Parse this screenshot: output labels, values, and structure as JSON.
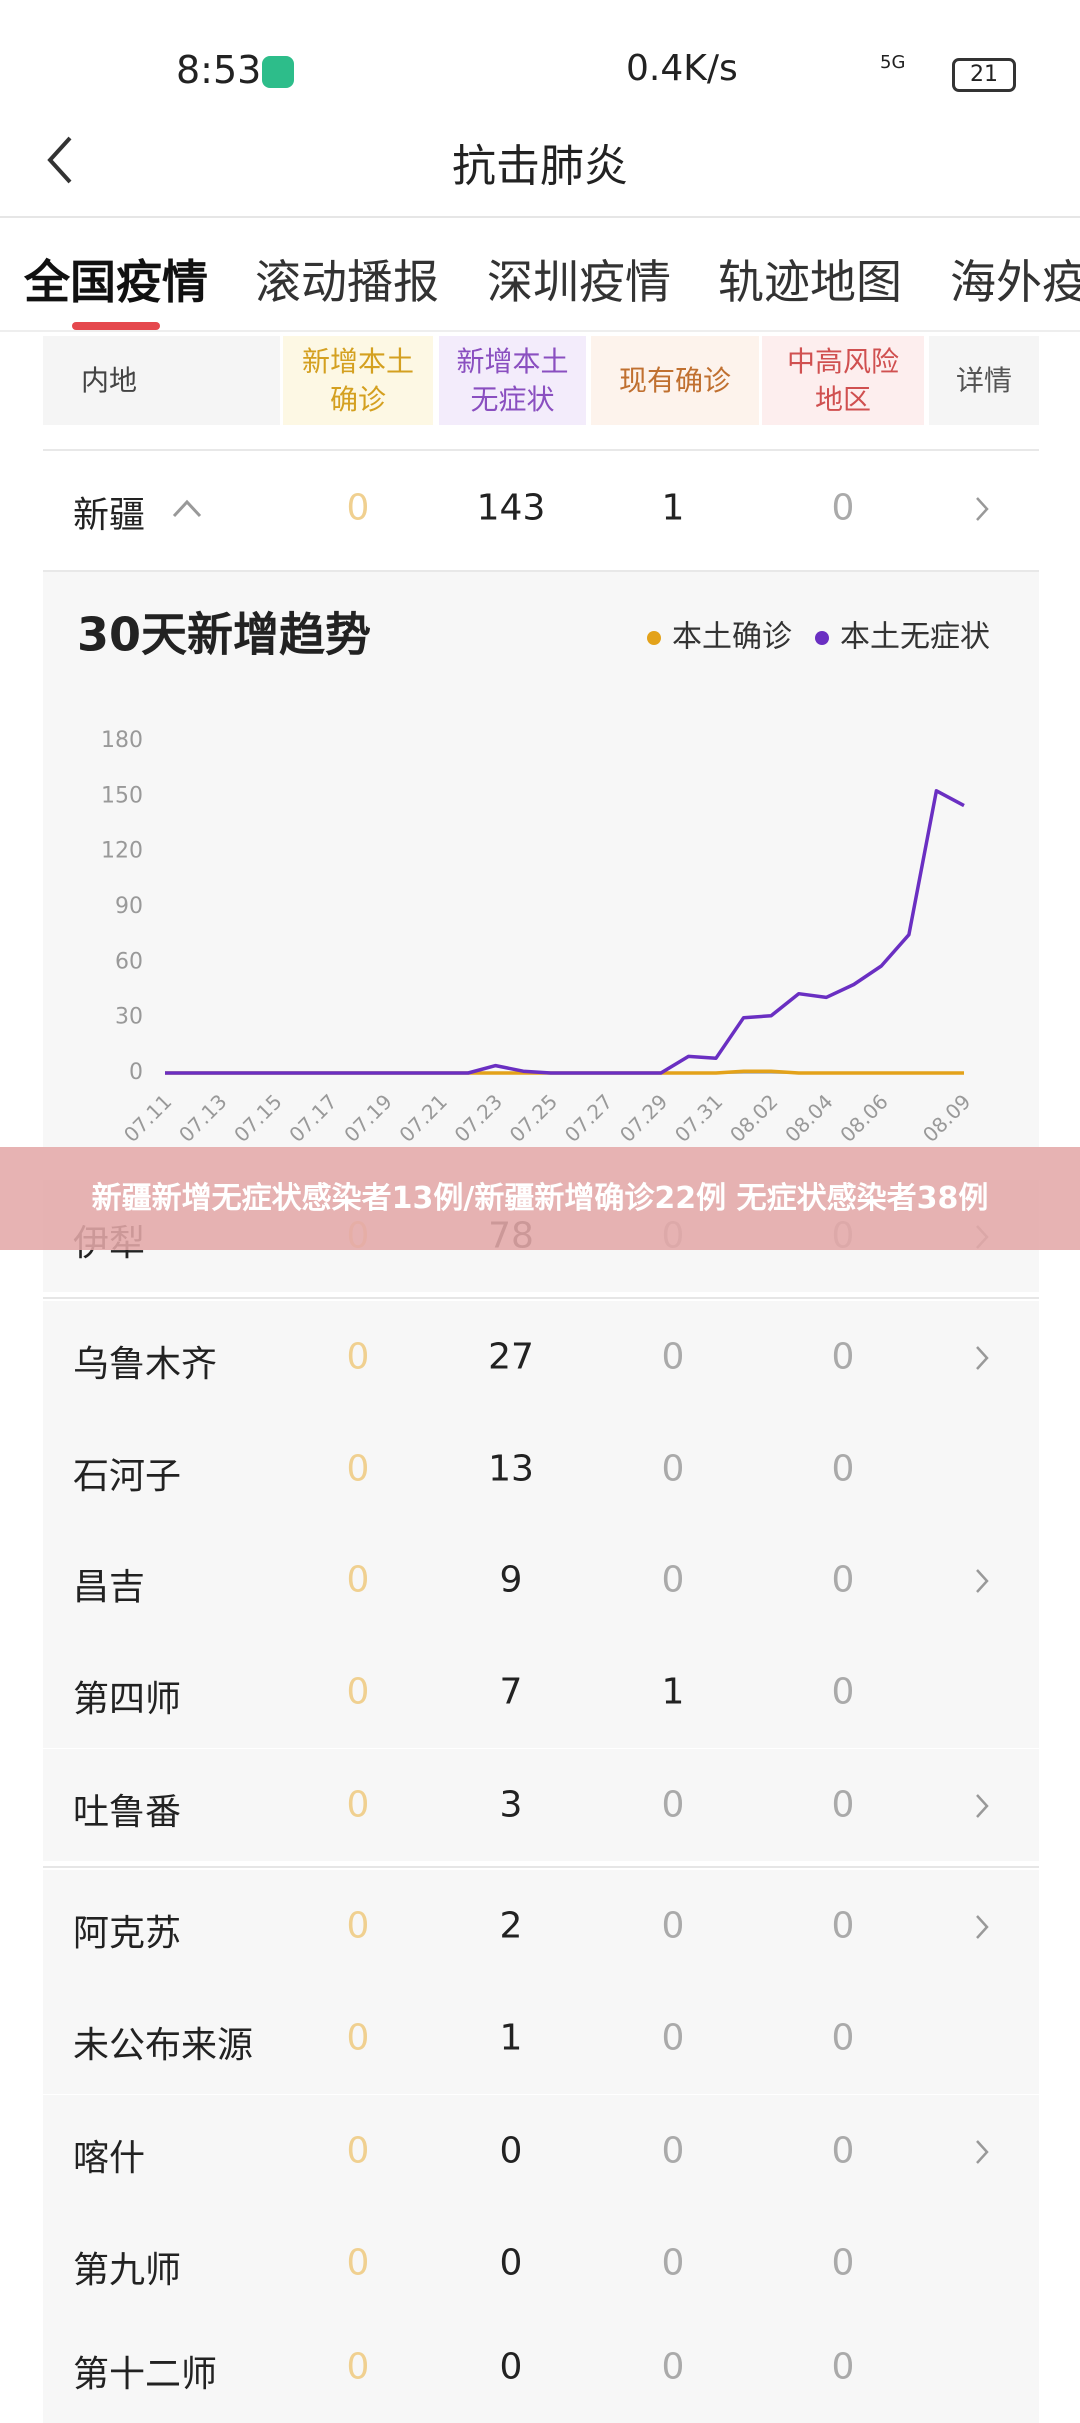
{
  "status_bar": {
    "time": "8:53",
    "network_speed": "0.4K/s",
    "signal": "5G",
    "battery": "21"
  },
  "header": {
    "title": "抗击肺炎"
  },
  "tabs": [
    "全国疫情",
    "滚动播报",
    "深圳疫情",
    "轨迹地图",
    "海外疫"
  ],
  "table": {
    "headers": [
      [
        "内地"
      ],
      [
        "新增本土",
        "确诊"
      ],
      [
        "新增本土",
        "无症状"
      ],
      [
        "现有确诊"
      ],
      [
        "中高风险",
        "地区"
      ],
      [
        "详情"
      ]
    ],
    "region": {
      "name": "新疆",
      "values": [
        0,
        143,
        1,
        0
      ],
      "has_detail": true
    },
    "cities": [
      {
        "name": "伊犁",
        "values": [
          0,
          78,
          0,
          0
        ],
        "has_detail": true
      },
      {
        "name": "乌鲁木齐",
        "values": [
          0,
          27,
          0,
          0
        ],
        "has_detail": true
      },
      {
        "name": "石河子",
        "values": [
          0,
          13,
          0,
          0
        ],
        "has_detail": false
      },
      {
        "name": "昌吉",
        "values": [
          0,
          9,
          0,
          0
        ],
        "has_detail": true
      },
      {
        "name": "第四师",
        "values": [
          0,
          7,
          1,
          0
        ],
        "has_detail": false
      },
      {
        "name": "吐鲁番",
        "values": [
          0,
          3,
          0,
          0
        ],
        "has_detail": true
      },
      {
        "name": "阿克苏",
        "values": [
          0,
          2,
          0,
          0
        ],
        "has_detail": true
      },
      {
        "name": "未公布来源",
        "values": [
          0,
          1,
          0,
          0
        ],
        "has_detail": false
      },
      {
        "name": "喀什",
        "values": [
          0,
          0,
          0,
          0
        ],
        "has_detail": true
      },
      {
        "name": "第九师",
        "values": [
          0,
          0,
          0,
          0
        ],
        "has_detail": false
      },
      {
        "name": "第十二师",
        "values": [
          0,
          0,
          0,
          0
        ],
        "has_detail": false
      }
    ]
  },
  "banner": {
    "text": "新疆新增无症状感染者13例/新疆新增确诊22例 无症状感染者38例"
  },
  "chart_data": {
    "type": "line",
    "title": "30天新增趋势",
    "categories": [
      "07.11",
      null,
      "07.13",
      null,
      "07.15",
      null,
      "07.17",
      null,
      "07.19",
      null,
      "07.21",
      null,
      "07.23",
      null,
      "07.25",
      null,
      "07.27",
      null,
      "07.29",
      null,
      "07.31",
      null,
      "08.02",
      null,
      "08.04",
      null,
      "08.06",
      null,
      null,
      "08.09"
    ],
    "series": [
      {
        "name": "本土确诊",
        "color": "#e3a21a",
        "values": [
          0,
          0,
          0,
          0,
          0,
          0,
          0,
          0,
          0,
          0,
          0,
          0,
          0,
          0,
          0,
          0,
          0,
          0,
          0,
          0,
          0,
          1,
          1,
          0,
          0,
          0,
          0,
          0,
          0,
          0
        ]
      },
      {
        "name": "本土无症状",
        "color": "#6a2fc2",
        "values": [
          0,
          0,
          0,
          0,
          0,
          0,
          0,
          0,
          0,
          0,
          0,
          0,
          4,
          1,
          0,
          0,
          0,
          0,
          0,
          9,
          8,
          30,
          31,
          43,
          41,
          48,
          58,
          75,
          153,
          145
        ]
      }
    ],
    "ylim": [
      0,
      180
    ],
    "yticks": [
      0,
      30,
      60,
      90,
      120,
      150,
      180
    ],
    "grid": false,
    "legend": "top-right"
  }
}
